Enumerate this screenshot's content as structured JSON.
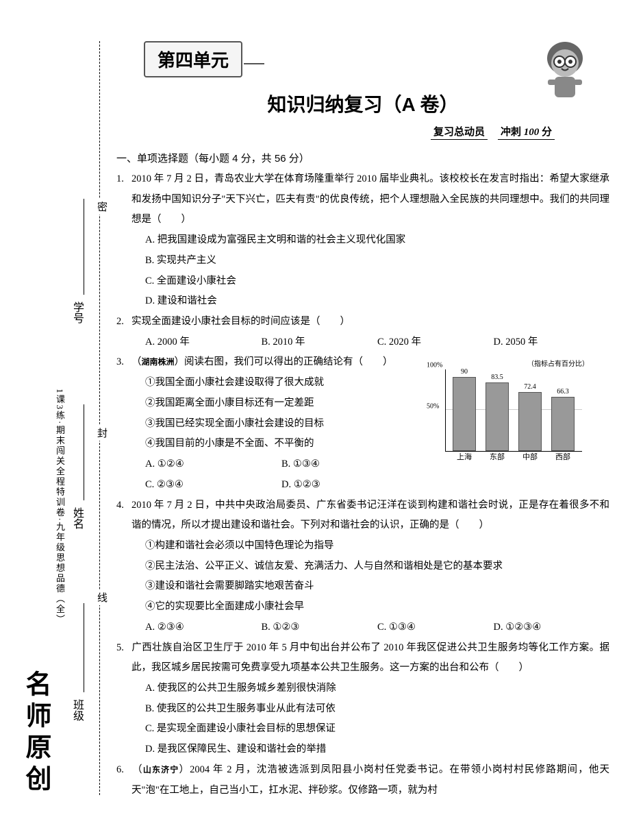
{
  "sidebar": {
    "brand": "名师原创",
    "subbrand": "1课3练·期末闯关全程特训卷·九年级思想品德（全）",
    "fields": {
      "class": "班级",
      "name": "姓名",
      "number": "学号"
    },
    "seal": {
      "top": "密",
      "mid": "封",
      "bot": "线"
    }
  },
  "header": {
    "unit": "第四单元",
    "title": "知识归纳复习（A 卷）",
    "subtitle_left": "复习总动员",
    "subtitle_right_a": "冲刺",
    "subtitle_right_b": "100",
    "subtitle_right_c": "分"
  },
  "section1": {
    "head": "一、单项选择题（每小题 4 分，共 56 分）"
  },
  "q1": {
    "num": "1.",
    "text": "2010 年 7 月 2 日，青岛农业大学在体育场隆重举行 2010 届毕业典礼。该校校长在发言时指出：希望大家继承和发扬中国知识分子\"天下兴亡，匹夫有责\"的优良传统，把个人理想融入全民族的共同理想中。我们的共同理想是（　　）",
    "A": "A. 把我国建设成为富强民主文明和谐的社会主义现代化国家",
    "B": "B. 实现共产主义",
    "C": "C. 全面建设小康社会",
    "D": "D. 建设和谐社会"
  },
  "q2": {
    "num": "2.",
    "text": "实现全面建设小康社会目标的时间应该是（　　）",
    "A": "A. 2000 年",
    "B": "B. 2010 年",
    "C": "C. 2020 年",
    "D": "D. 2050 年"
  },
  "q3": {
    "num": "3.",
    "src": "湖南株洲",
    "text_a": "（",
    "text_b": "）阅读右图，我们可以得出的正确结论有（　　）",
    "s1": "①我国全面小康社会建设取得了很大成就",
    "s2": "②我国距离全面小康目标还有一定差距",
    "s3": "③我国已经实现全面小康社会建设的目标",
    "s4": "④我国目前的小康是不全面、不平衡的",
    "A": "A. ①②④",
    "B": "B. ①③④",
    "C": "C. ②③④",
    "D": "D. ①②③",
    "chart": {
      "title": "（指标占有百分比）",
      "ymax": 100,
      "ytick": 50,
      "categories": [
        "上海",
        "东部",
        "中部",
        "西部"
      ],
      "values": [
        90,
        83.5,
        72.4,
        66.3
      ],
      "bar_color": "#999999",
      "grid_color": "#cccccc"
    }
  },
  "q4": {
    "num": "4.",
    "text": "2010 年 7 月 2 日，中共中央政治局委员、广东省委书记汪洋在谈到构建和谐社会时说，正是存在着很多不和谐的情况，所以才提出建设和谐社会。下列对和谐社会的认识，正确的是（　　）",
    "s1": "①构建和谐社会必须以中国特色理论为指导",
    "s2": "②民主法治、公平正义、诚信友爱、充满活力、人与自然和谐相处是它的基本要求",
    "s3": "③建设和谐社会需要脚踏实地艰苦奋斗",
    "s4": "④它的实现要比全面建成小康社会早",
    "A": "A. ②③④",
    "B": "B. ①②③",
    "C": "C. ①③④",
    "D": "D. ①②③④"
  },
  "q5": {
    "num": "5.",
    "text": "广西壮族自治区卫生厅于 2010 年 5 月中旬出台并公布了 2010 年我区促进公共卫生服务均等化工作方案。据此，我区城乡居民按需可免费享受九项基本公共卫生服务。这一方案的出台和公布（　　）",
    "A": "A. 使我区的公共卫生服务城乡差别很快消除",
    "B": "B. 使我区的公共卫生服务事业从此有法可依",
    "C": "C. 是实现全面建设小康社会目标的思想保证",
    "D": "D. 是我区保障民生、建设和谐社会的举措"
  },
  "q6": {
    "num": "6.",
    "src": "山东济宁",
    "text_a": "（",
    "text_b": "）2004 年 2 月，沈浩被选派到凤阳县小岗村任党委书记。在带领小岗村村民修路期间，他天天\"泡\"在工地上，自己当小工，扛水泥、拌砂浆。仅修路一项，就为村"
  }
}
